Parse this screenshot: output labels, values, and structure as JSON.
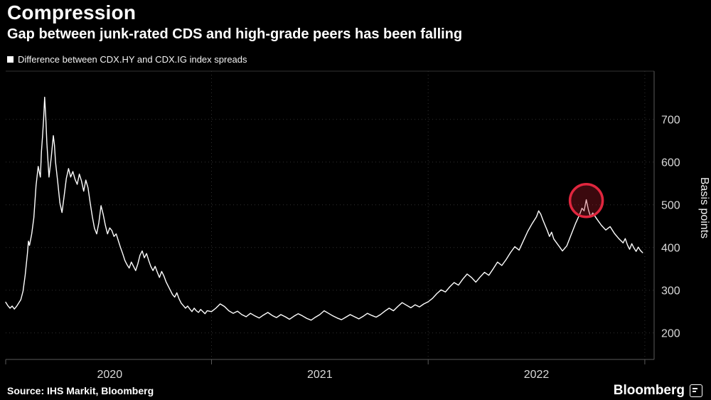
{
  "header": {
    "title": "Compression",
    "subtitle": "Gap between junk-rated CDS and high-grade peers has been falling",
    "legend": {
      "swatch_color": "#ffffff",
      "label": "Difference between CDX.HY and CDX.IG index spreads"
    }
  },
  "footer": {
    "source": "Source: IHS Markit, Bloomberg",
    "brand": "Bloomberg"
  },
  "chart_data": {
    "type": "line",
    "title": "Compression",
    "subtitle": "Gap between junk-rated CDS and high-grade peers has been falling",
    "ylabel": "Basis points",
    "x_range": [
      2020.05,
      2023.03
    ],
    "y_range": [
      138,
      813
    ],
    "y_ticks": [
      200,
      300,
      400,
      500,
      600,
      700
    ],
    "x_gridlines": [
      2021,
      2022,
      2023
    ],
    "x_axis_ticks": [
      2020.05,
      2021,
      2022,
      2023
    ],
    "x_tick_labels": [
      {
        "label": "2020",
        "x": 2020.53
      },
      {
        "label": "2021",
        "x": 2021.5
      },
      {
        "label": "2022",
        "x": 2022.5
      }
    ],
    "grid_color": "#323232",
    "axis_color": "#5a5a5a",
    "tick_label_color": "#d9d9d9",
    "series": [
      {
        "name": "Difference between CDX.HY and CDX.IG index spreads",
        "color": "#ffffff",
        "points": [
          [
            2020.05,
            272
          ],
          [
            2020.06,
            264
          ],
          [
            2020.07,
            258
          ],
          [
            2020.08,
            263
          ],
          [
            2020.09,
            256
          ],
          [
            2020.1,
            262
          ],
          [
            2020.11,
            270
          ],
          [
            2020.12,
            278
          ],
          [
            2020.13,
            298
          ],
          [
            2020.14,
            335
          ],
          [
            2020.15,
            385
          ],
          [
            2020.155,
            415
          ],
          [
            2020.16,
            405
          ],
          [
            2020.17,
            432
          ],
          [
            2020.18,
            470
          ],
          [
            2020.19,
            545
          ],
          [
            2020.2,
            590
          ],
          [
            2020.21,
            565
          ],
          [
            2020.215,
            625
          ],
          [
            2020.22,
            660
          ],
          [
            2020.225,
            700
          ],
          [
            2020.23,
            752
          ],
          [
            2020.235,
            705
          ],
          [
            2020.24,
            645
          ],
          [
            2020.25,
            565
          ],
          [
            2020.26,
            610
          ],
          [
            2020.27,
            662
          ],
          [
            2020.275,
            640
          ],
          [
            2020.28,
            600
          ],
          [
            2020.29,
            555
          ],
          [
            2020.3,
            505
          ],
          [
            2020.31,
            482
          ],
          [
            2020.32,
            522
          ],
          [
            2020.33,
            562
          ],
          [
            2020.34,
            585
          ],
          [
            2020.35,
            565
          ],
          [
            2020.36,
            578
          ],
          [
            2020.37,
            560
          ],
          [
            2020.38,
            548
          ],
          [
            2020.39,
            572
          ],
          [
            2020.4,
            556
          ],
          [
            2020.41,
            532
          ],
          [
            2020.42,
            558
          ],
          [
            2020.43,
            540
          ],
          [
            2020.44,
            505
          ],
          [
            2020.45,
            472
          ],
          [
            2020.46,
            445
          ],
          [
            2020.47,
            432
          ],
          [
            2020.48,
            458
          ],
          [
            2020.49,
            498
          ],
          [
            2020.5,
            478
          ],
          [
            2020.51,
            452
          ],
          [
            2020.52,
            432
          ],
          [
            2020.53,
            446
          ],
          [
            2020.54,
            440
          ],
          [
            2020.55,
            426
          ],
          [
            2020.56,
            432
          ],
          [
            2020.57,
            416
          ],
          [
            2020.58,
            400
          ],
          [
            2020.59,
            386
          ],
          [
            2020.6,
            370
          ],
          [
            2020.61,
            360
          ],
          [
            2020.62,
            352
          ],
          [
            2020.63,
            366
          ],
          [
            2020.64,
            356
          ],
          [
            2020.65,
            346
          ],
          [
            2020.66,
            362
          ],
          [
            2020.67,
            382
          ],
          [
            2020.68,
            392
          ],
          [
            2020.69,
            376
          ],
          [
            2020.7,
            386
          ],
          [
            2020.71,
            370
          ],
          [
            2020.72,
            356
          ],
          [
            2020.73,
            346
          ],
          [
            2020.74,
            356
          ],
          [
            2020.75,
            342
          ],
          [
            2020.76,
            330
          ],
          [
            2020.77,
            344
          ],
          [
            2020.78,
            334
          ],
          [
            2020.79,
            320
          ],
          [
            2020.8,
            310
          ],
          [
            2020.81,
            300
          ],
          [
            2020.82,
            290
          ],
          [
            2020.83,
            284
          ],
          [
            2020.84,
            294
          ],
          [
            2020.85,
            280
          ],
          [
            2020.86,
            270
          ],
          [
            2020.87,
            264
          ],
          [
            2020.88,
            258
          ],
          [
            2020.89,
            263
          ],
          [
            2020.9,
            256
          ],
          [
            2020.91,
            250
          ],
          [
            2020.92,
            258
          ],
          [
            2020.93,
            252
          ],
          [
            2020.94,
            248
          ],
          [
            2020.95,
            255
          ],
          [
            2020.96,
            250
          ],
          [
            2020.97,
            245
          ],
          [
            2020.98,
            252
          ],
          [
            2021.0,
            250
          ],
          [
            2021.02,
            258
          ],
          [
            2021.04,
            268
          ],
          [
            2021.06,
            262
          ],
          [
            2021.08,
            252
          ],
          [
            2021.1,
            246
          ],
          [
            2021.12,
            251
          ],
          [
            2021.14,
            243
          ],
          [
            2021.16,
            238
          ],
          [
            2021.18,
            246
          ],
          [
            2021.2,
            240
          ],
          [
            2021.22,
            235
          ],
          [
            2021.24,
            242
          ],
          [
            2021.26,
            248
          ],
          [
            2021.28,
            241
          ],
          [
            2021.3,
            236
          ],
          [
            2021.32,
            243
          ],
          [
            2021.34,
            238
          ],
          [
            2021.36,
            232
          ],
          [
            2021.38,
            239
          ],
          [
            2021.4,
            245
          ],
          [
            2021.42,
            240
          ],
          [
            2021.44,
            234
          ],
          [
            2021.46,
            230
          ],
          [
            2021.48,
            237
          ],
          [
            2021.5,
            243
          ],
          [
            2021.52,
            252
          ],
          [
            2021.54,
            246
          ],
          [
            2021.56,
            240
          ],
          [
            2021.58,
            235
          ],
          [
            2021.6,
            231
          ],
          [
            2021.62,
            237
          ],
          [
            2021.64,
            243
          ],
          [
            2021.66,
            238
          ],
          [
            2021.68,
            233
          ],
          [
            2021.7,
            239
          ],
          [
            2021.72,
            246
          ],
          [
            2021.74,
            241
          ],
          [
            2021.76,
            237
          ],
          [
            2021.78,
            243
          ],
          [
            2021.8,
            251
          ],
          [
            2021.82,
            258
          ],
          [
            2021.84,
            252
          ],
          [
            2021.86,
            262
          ],
          [
            2021.88,
            271
          ],
          [
            2021.9,
            265
          ],
          [
            2021.92,
            259
          ],
          [
            2021.94,
            266
          ],
          [
            2021.96,
            261
          ],
          [
            2021.98,
            268
          ],
          [
            2022.0,
            273
          ],
          [
            2022.02,
            281
          ],
          [
            2022.04,
            292
          ],
          [
            2022.06,
            301
          ],
          [
            2022.08,
            296
          ],
          [
            2022.1,
            308
          ],
          [
            2022.12,
            318
          ],
          [
            2022.14,
            312
          ],
          [
            2022.16,
            326
          ],
          [
            2022.18,
            338
          ],
          [
            2022.2,
            330
          ],
          [
            2022.22,
            319
          ],
          [
            2022.24,
            331
          ],
          [
            2022.26,
            342
          ],
          [
            2022.28,
            335
          ],
          [
            2022.3,
            350
          ],
          [
            2022.32,
            366
          ],
          [
            2022.34,
            358
          ],
          [
            2022.36,
            372
          ],
          [
            2022.38,
            388
          ],
          [
            2022.4,
            402
          ],
          [
            2022.42,
            394
          ],
          [
            2022.44,
            416
          ],
          [
            2022.46,
            438
          ],
          [
            2022.48,
            456
          ],
          [
            2022.5,
            472
          ],
          [
            2022.51,
            486
          ],
          [
            2022.52,
            478
          ],
          [
            2022.53,
            464
          ],
          [
            2022.54,
            452
          ],
          [
            2022.55,
            440
          ],
          [
            2022.56,
            426
          ],
          [
            2022.57,
            436
          ],
          [
            2022.58,
            420
          ],
          [
            2022.6,
            406
          ],
          [
            2022.62,
            392
          ],
          [
            2022.64,
            404
          ],
          [
            2022.66,
            430
          ],
          [
            2022.68,
            456
          ],
          [
            2022.7,
            478
          ],
          [
            2022.71,
            492
          ],
          [
            2022.72,
            486
          ],
          [
            2022.73,
            512
          ],
          [
            2022.74,
            488
          ],
          [
            2022.75,
            472
          ],
          [
            2022.76,
            481
          ],
          [
            2022.78,
            466
          ],
          [
            2022.8,
            452
          ],
          [
            2022.82,
            441
          ],
          [
            2022.84,
            449
          ],
          [
            2022.86,
            433
          ],
          [
            2022.88,
            421
          ],
          [
            2022.9,
            411
          ],
          [
            2022.91,
            421
          ],
          [
            2022.92,
            406
          ],
          [
            2022.93,
            396
          ],
          [
            2022.94,
            409
          ],
          [
            2022.95,
            399
          ],
          [
            2022.96,
            391
          ],
          [
            2022.97,
            401
          ],
          [
            2022.98,
            393
          ],
          [
            2022.99,
            388
          ]
        ]
      }
    ],
    "annotation": {
      "type": "circle",
      "x": 2022.73,
      "y": 510,
      "stroke_color": "#e0263e",
      "fill_color": "rgba(185,28,45,0.32)"
    }
  }
}
